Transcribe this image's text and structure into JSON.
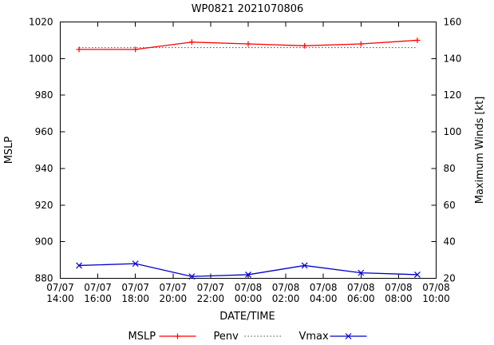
{
  "chart_data": {
    "type": "line",
    "title": "WP0821 2021070806",
    "xlabel": "DATE/TIME",
    "ylabel": "MSLP",
    "y2label": "Maximum Winds [kt]",
    "x_ticks": [
      {
        "date": "07/07",
        "time": "14:00"
      },
      {
        "date": "07/07",
        "time": "16:00"
      },
      {
        "date": "07/07",
        "time": "18:00"
      },
      {
        "date": "07/07",
        "time": "20:00"
      },
      {
        "date": "07/07",
        "time": "22:00"
      },
      {
        "date": "07/08",
        "time": "00:00"
      },
      {
        "date": "07/08",
        "time": "02:00"
      },
      {
        "date": "07/08",
        "time": "04:00"
      },
      {
        "date": "07/08",
        "time": "06:00"
      },
      {
        "date": "07/08",
        "time": "08:00"
      },
      {
        "date": "07/08",
        "time": "10:00"
      }
    ],
    "x_range_hours": [
      0,
      20
    ],
    "x_tick_step_hours": 2,
    "ylim": [
      880,
      1020
    ],
    "y_tick_step": 20,
    "y2lim": [
      20,
      160
    ],
    "y2_tick_step": 20,
    "grid": false,
    "legend_position": "bottom-center",
    "x_hours": [
      1,
      4,
      7,
      10,
      13,
      16,
      19
    ],
    "series": [
      {
        "name": "MSLP",
        "axis": "left",
        "color": "#ff0000",
        "style": "solid",
        "marker": "plus",
        "values": [
          1005,
          1005,
          1009,
          1008,
          1007,
          1008,
          1010
        ]
      },
      {
        "name": "Penv",
        "axis": "left",
        "color": "#444444",
        "style": "dotted",
        "marker": "none",
        "values": [
          1006,
          1006,
          1006,
          1006,
          1006,
          1006,
          1006
        ]
      },
      {
        "name": "Vmax",
        "axis": "right",
        "color": "#0000cc",
        "style": "solid",
        "marker": "x",
        "values": [
          27,
          28,
          21,
          22,
          27,
          23,
          22
        ]
      }
    ]
  }
}
